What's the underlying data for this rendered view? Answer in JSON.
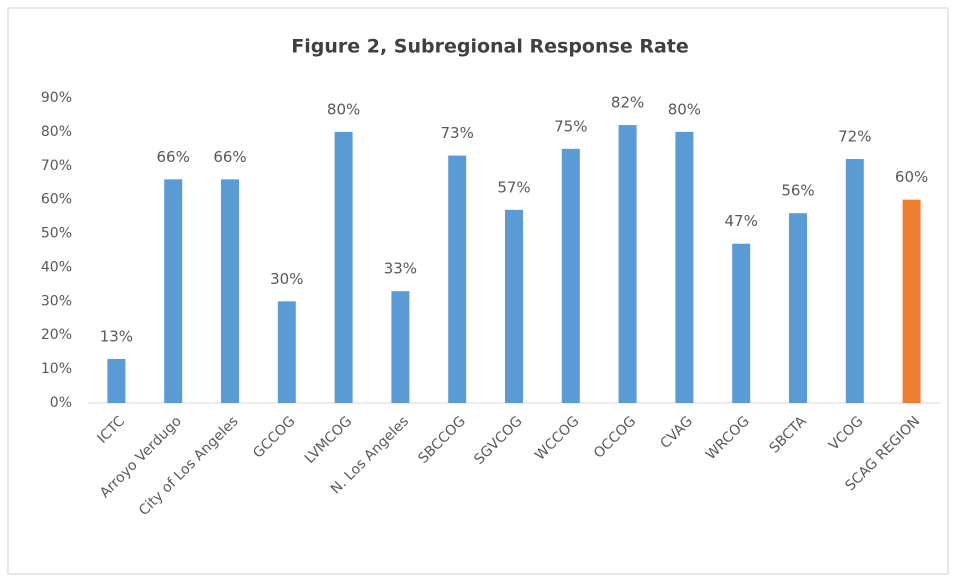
{
  "chart_data": {
    "type": "bar",
    "title": "Figure 2, Subregional Response Rate",
    "categories": [
      "ICTC",
      "Arroyo Verdugo",
      "City of Los Angeles",
      "GCCOG",
      "LVMCOG",
      "N. Los Angeles",
      "SBCCOG",
      "SGVCOG",
      "WCCOG",
      "OCCOG",
      "CVAG",
      "WRCOG",
      "SBCTA",
      "VCOG",
      "SCAG REGION"
    ],
    "values": [
      13,
      66,
      66,
      30,
      80,
      33,
      73,
      57,
      75,
      82,
      80,
      47,
      56,
      72,
      60
    ],
    "value_labels": [
      "13%",
      "66%",
      "66%",
      "30%",
      "80%",
      "33%",
      "73%",
      "57%",
      "75%",
      "82%",
      "80%",
      "47%",
      "56%",
      "72%",
      "60%"
    ],
    "colors": [
      "#5b9bd5",
      "#5b9bd5",
      "#5b9bd5",
      "#5b9bd5",
      "#5b9bd5",
      "#5b9bd5",
      "#5b9bd5",
      "#5b9bd5",
      "#5b9bd5",
      "#5b9bd5",
      "#5b9bd5",
      "#5b9bd5",
      "#5b9bd5",
      "#5b9bd5",
      "#ed7d31"
    ],
    "ylim": [
      0,
      90
    ],
    "yticks": [
      {
        "value": 0,
        "label": "0%"
      },
      {
        "value": 10,
        "label": "10%"
      },
      {
        "value": 20,
        "label": "20%"
      },
      {
        "value": 30,
        "label": "30%"
      },
      {
        "value": 40,
        "label": "40%"
      },
      {
        "value": 50,
        "label": "50%"
      },
      {
        "value": 60,
        "label": "60%"
      },
      {
        "value": 70,
        "label": "70%"
      },
      {
        "value": 80,
        "label": "80%"
      },
      {
        "value": 90,
        "label": "90%"
      }
    ],
    "grid": false
  }
}
